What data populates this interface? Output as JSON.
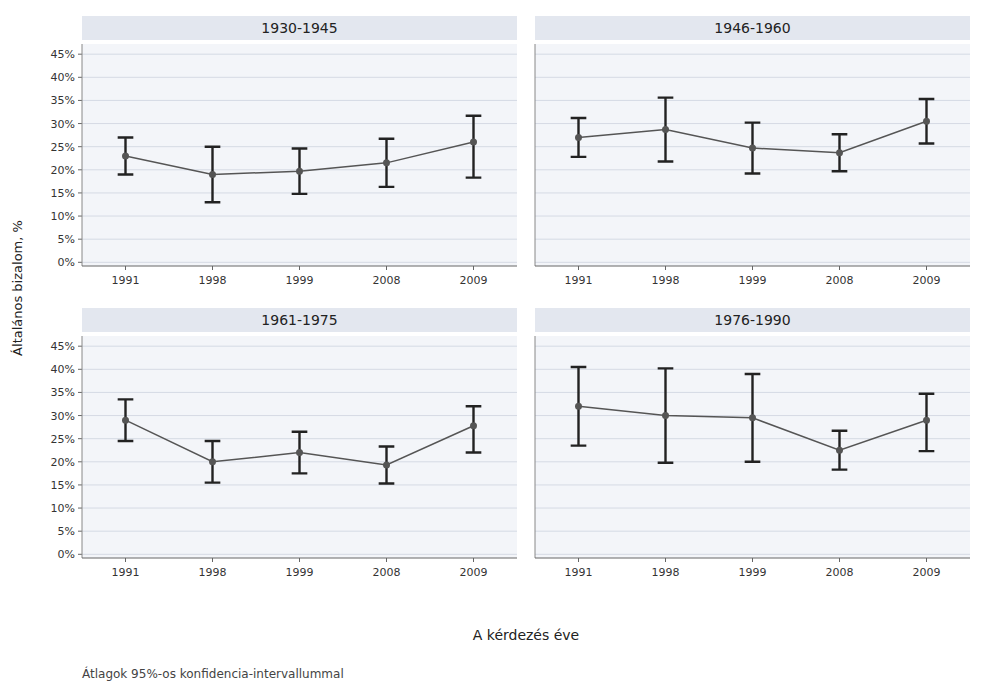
{
  "chart_data": [
    {
      "type": "line",
      "title": "1930-1945",
      "ylabel": "Általános bizalom, %",
      "xlabel": "A kérdezés éve",
      "annotations": [
        "Átlagok 95%-os konfidencia-intervallummal"
      ],
      "categories": [
        "1991",
        "1998",
        "1999",
        "2008",
        "2009"
      ],
      "series": [
        {
          "color": "#555555",
          "marker": "circle",
          "values": [
            0.23,
            0.19,
            0.197,
            0.215,
            0.26
          ],
          "ci_low": [
            0.19,
            0.13,
            0.148,
            0.163,
            0.183
          ],
          "ci_high": [
            0.27,
            0.25,
            0.246,
            0.267,
            0.317
          ]
        }
      ],
      "ylim": [
        -0.008,
        0.472
      ],
      "yticks": [
        {
          "value": 0.0,
          "label": "0%"
        },
        {
          "value": 0.05,
          "label": "5%"
        },
        {
          "value": 0.1,
          "label": "10%"
        },
        {
          "value": 0.15,
          "label": "15%"
        },
        {
          "value": 0.2,
          "label": "20%"
        },
        {
          "value": 0.25,
          "label": "25%"
        },
        {
          "value": 0.3,
          "label": "30%"
        },
        {
          "value": 0.35,
          "label": "35%"
        },
        {
          "value": 0.4,
          "label": "40%"
        },
        {
          "value": 0.45,
          "label": "45%"
        }
      ],
      "grid": true
    },
    {
      "type": "line",
      "title": "1946-1960",
      "categories": [
        "1991",
        "1998",
        "1999",
        "2008",
        "2009"
      ],
      "series": [
        {
          "color": "#555555",
          "marker": "circle",
          "values": [
            0.27,
            0.287,
            0.247,
            0.237,
            0.305
          ],
          "ci_low": [
            0.228,
            0.218,
            0.192,
            0.197,
            0.257
          ],
          "ci_high": [
            0.312,
            0.356,
            0.302,
            0.277,
            0.353
          ]
        }
      ],
      "ylim": [
        -0.008,
        0.472
      ],
      "yticks": [
        {
          "value": 0.0,
          "label": "0%"
        },
        {
          "value": 0.05,
          "label": "5%"
        },
        {
          "value": 0.1,
          "label": "10%"
        },
        {
          "value": 0.15,
          "label": "15%"
        },
        {
          "value": 0.2,
          "label": "20%"
        },
        {
          "value": 0.25,
          "label": "25%"
        },
        {
          "value": 0.3,
          "label": "30%"
        },
        {
          "value": 0.35,
          "label": "35%"
        },
        {
          "value": 0.4,
          "label": "40%"
        },
        {
          "value": 0.45,
          "label": "45%"
        }
      ],
      "grid": true,
      "tick_labels": "x"
    },
    {
      "type": "line",
      "title": "1961-1975",
      "categories": [
        "1991",
        "1998",
        "1999",
        "2008",
        "2009"
      ],
      "series": [
        {
          "color": "#555555",
          "marker": "circle",
          "values": [
            0.29,
            0.2,
            0.22,
            0.193,
            0.278
          ],
          "ci_low": [
            0.245,
            0.155,
            0.175,
            0.153,
            0.22
          ],
          "ci_high": [
            0.335,
            0.245,
            0.265,
            0.233,
            0.32
          ]
        }
      ],
      "ylim": [
        -0.008,
        0.472
      ],
      "yticks": [
        {
          "value": 0.0,
          "label": "0%"
        },
        {
          "value": 0.05,
          "label": "5%"
        },
        {
          "value": 0.1,
          "label": "10%"
        },
        {
          "value": 0.15,
          "label": "15%"
        },
        {
          "value": 0.2,
          "label": "20%"
        },
        {
          "value": 0.25,
          "label": "25%"
        },
        {
          "value": 0.3,
          "label": "30%"
        },
        {
          "value": 0.35,
          "label": "35%"
        },
        {
          "value": 0.4,
          "label": "40%"
        },
        {
          "value": 0.45,
          "label": "45%"
        }
      ],
      "grid": true
    },
    {
      "type": "line",
      "title": "1976-1990",
      "categories": [
        "1991",
        "1998",
        "1999",
        "2008",
        "2009"
      ],
      "series": [
        {
          "color": "#555555",
          "marker": "circle",
          "values": [
            0.32,
            0.3,
            0.295,
            0.225,
            0.29
          ],
          "ci_low": [
            0.235,
            0.198,
            0.2,
            0.183,
            0.223
          ],
          "ci_high": [
            0.405,
            0.402,
            0.39,
            0.267,
            0.347
          ]
        }
      ],
      "ylim": [
        -0.008,
        0.472
      ],
      "yticks": [
        {
          "value": 0.0,
          "label": "0%"
        },
        {
          "value": 0.05,
          "label": "5%"
        },
        {
          "value": 0.1,
          "label": "10%"
        },
        {
          "value": 0.15,
          "label": "15%"
        },
        {
          "value": 0.2,
          "label": "20%"
        },
        {
          "value": 0.25,
          "label": "25%"
        },
        {
          "value": 0.3,
          "label": "30%"
        },
        {
          "value": 0.35,
          "label": "35%"
        },
        {
          "value": 0.4,
          "label": "40%"
        },
        {
          "value": 0.45,
          "label": "45%"
        }
      ],
      "grid": true,
      "tick_labels": "x"
    }
  ]
}
